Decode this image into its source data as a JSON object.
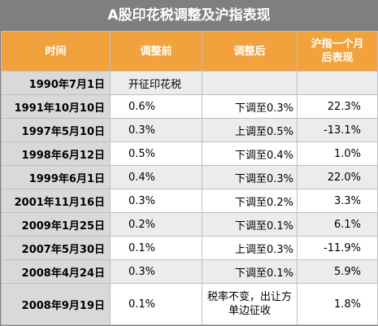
{
  "header": {
    "title": "A股印花税调整及沪指表现"
  },
  "table": {
    "columns": [
      "时间",
      "调整前",
      "调整后",
      "沪指一个月后表现"
    ],
    "rows": [
      [
        "1990年7月1日",
        "开征印花税",
        "",
        ""
      ],
      [
        "1991年10月10日",
        "0.6%",
        "下调至0.3%",
        "22.3%"
      ],
      [
        "1997年5月10日",
        "0.3%",
        "上调至0.5%",
        "-13.1%"
      ],
      [
        "1998年6月12日",
        "0.5%",
        "下调至0.4%",
        "1.0%"
      ],
      [
        "1999年6月1日",
        "0.4%",
        "下调至0.3%",
        "22.0%"
      ],
      [
        "2001年11月16日",
        "0.3%",
        "下调至0.2%",
        "3.3%"
      ],
      [
        "2009年1月25日",
        "0.2%",
        "下调至0.1%",
        "6.1%"
      ],
      [
        "2007年5月30日",
        "0.1%",
        "上调至0.3%",
        "-11.9%"
      ],
      [
        "2008年4月24日",
        "0.3%",
        "下调至0.1%",
        "5.9%"
      ],
      [
        "2008年9月19日",
        "0.1%",
        "税率不变，出让方单边征收",
        "1.8%"
      ]
    ]
  }
}
